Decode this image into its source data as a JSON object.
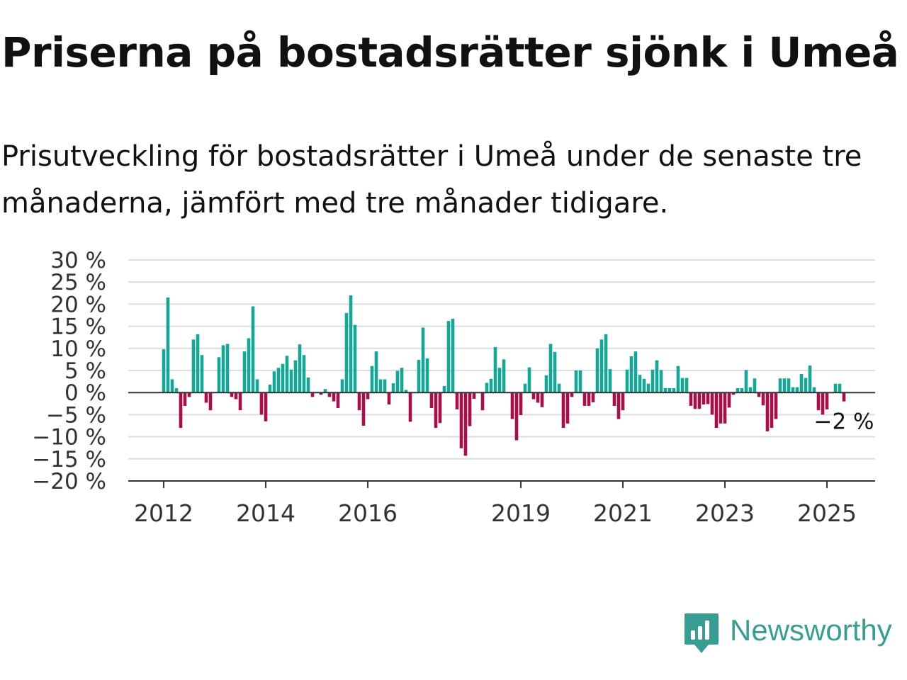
{
  "header": {
    "title": "Priserna på bostadsrätter sjönk i Umeå",
    "subtitle": "Prisutveckling för bostadsrätter i Umeå under de senaste tre månaderna, jämfört med tre månader tidigare."
  },
  "brand": {
    "name": "Newsworthy",
    "color": "#3a9d93"
  },
  "chart_data": {
    "type": "bar",
    "unit": "%",
    "ylim": [
      -20,
      30
    ],
    "yticks": [
      30,
      25,
      20,
      15,
      10,
      5,
      0,
      -5,
      -10,
      -15,
      -20
    ],
    "ytick_labels": [
      "30 %",
      "25 %",
      "20 %",
      "15 %",
      "10 %",
      "5 %",
      "0 %",
      "−5 %",
      "−10 %",
      "−15 %",
      "−20 %"
    ],
    "xticks": [
      {
        "label": "2012",
        "index": 0
      },
      {
        "label": "2014",
        "index": 24
      },
      {
        "label": "2016",
        "index": 48
      },
      {
        "label": "2019",
        "index": 84
      },
      {
        "label": "2021",
        "index": 108
      },
      {
        "label": "2023",
        "index": 132
      },
      {
        "label": "2025",
        "index": 156
      }
    ],
    "colors": {
      "positive": "#16a596",
      "negative": "#a50f4a"
    },
    "grid": true,
    "annotation": {
      "text": "−2 %",
      "index": 158
    },
    "values": [
      9.8,
      21.5,
      3,
      1,
      -8,
      -3,
      -1,
      12,
      13.2,
      8.5,
      -2.3,
      -4,
      0,
      8,
      10.7,
      11,
      -1,
      -1.5,
      -4,
      9.3,
      12.3,
      19.5,
      3,
      -5,
      -6.5,
      1.8,
      4.8,
      5.6,
      6.5,
      8.3,
      5.2,
      7.3,
      10.9,
      8.5,
      3.4,
      -1,
      0,
      -0.5,
      0.8,
      -1,
      -2,
      -3.5,
      3,
      18,
      22,
      15.3,
      -4,
      -7.5,
      -1.5,
      6,
      9.3,
      3,
      3,
      -2.7,
      2.1,
      4.9,
      5.6,
      0.6,
      -6.6,
      0,
      7.4,
      14.7,
      7.7,
      -3.5,
      -8,
      -6.9,
      1.5,
      16.2,
      16.7,
      -3.8,
      -12.6,
      -14.3,
      -7.6,
      -1.4,
      0,
      -4,
      2.2,
      3.1,
      10.3,
      5.6,
      7.5,
      0,
      -6,
      -10.8,
      -5.1,
      2,
      5.7,
      -1.5,
      -2.3,
      -3.3,
      3.9,
      11,
      9.2,
      2,
      -8,
      -7,
      -1,
      5,
      5,
      -3,
      -3,
      -2.2,
      10,
      12,
      13.2,
      5.3,
      -3,
      -6,
      -4,
      5.2,
      8.2,
      9.3,
      4,
      3.1,
      2,
      5.2,
      7.3,
      5.1,
      1,
      1,
      1,
      6,
      3.3,
      3.3,
      -3,
      -3.7,
      -3.7,
      -2.7,
      -2.6,
      -5,
      -8,
      -7,
      -7,
      -3.4,
      -0.5,
      1,
      1,
      5.1,
      1.2,
      3.2,
      -1,
      -2.9,
      -8.8,
      -8,
      -6,
      3.2,
      3.2,
      3.2,
      1.2,
      1.2,
      4.2,
      3.3,
      6.1,
      1.2,
      -4,
      -5,
      -3.8,
      0,
      2,
      2,
      -2
    ]
  }
}
